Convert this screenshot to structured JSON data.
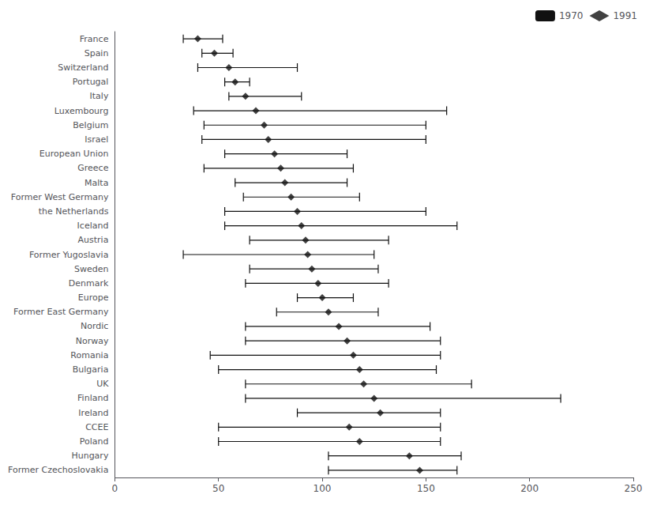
{
  "chart_data": {
    "type": "dot",
    "orientation": "horizontal",
    "categories": [
      "France",
      "Spain",
      "Switzerland",
      "Portugal",
      "Italy",
      "Luxembourg",
      "Belgium",
      "Israel",
      "European Union",
      "Greece",
      "Malta",
      "Former West Germany",
      "the Netherlands",
      "Iceland",
      "Austria",
      "Former Yugoslavia",
      "Sweden",
      "Denmark",
      "Europe",
      "Former East Germany",
      "Nordic",
      "Norway",
      "Romania",
      "Bulgaria",
      "UK",
      "Finland",
      "Ireland",
      "CCEE",
      "Poland",
      "Hungary",
      "Former Czechoslovakia"
    ],
    "series": [
      {
        "name": "1970",
        "type": "range",
        "color": "#111111",
        "low": [
          33,
          42,
          40,
          53,
          55,
          38,
          43,
          42,
          53,
          43,
          58,
          62,
          53,
          53,
          65,
          33,
          65,
          63,
          88,
          78,
          63,
          63,
          46,
          50,
          63,
          63,
          88,
          50,
          50,
          103,
          103
        ],
        "high": [
          52,
          57,
          88,
          65,
          90,
          160,
          150,
          150,
          112,
          115,
          112,
          118,
          150,
          165,
          132,
          125,
          127,
          132,
          115,
          127,
          152,
          157,
          157,
          155,
          172,
          215,
          157,
          157,
          157,
          167,
          165
        ]
      },
      {
        "name": "1991",
        "type": "scatter",
        "marker": "diamond",
        "color": "#111111",
        "values": [
          40,
          48,
          55,
          58,
          63,
          68,
          72,
          74,
          77,
          80,
          82,
          85,
          88,
          90,
          92,
          93,
          95,
          98,
          100,
          103,
          108,
          112,
          115,
          118,
          120,
          125,
          128,
          113,
          118,
          142,
          147
        ]
      }
    ],
    "xlim": [
      0,
      250
    ],
    "xticks": [
      0,
      50,
      100,
      150,
      200,
      250
    ],
    "grid": false,
    "legend": "upper right"
  }
}
